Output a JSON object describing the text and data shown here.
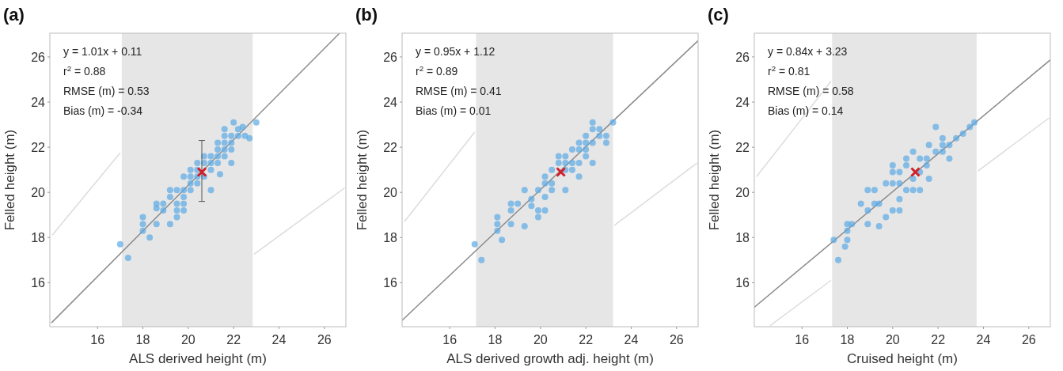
{
  "chart_data": [
    {
      "type": "scatter",
      "title": "(a)",
      "xlabel": "ALS derived height (m)",
      "ylabel": "Felled height (m)",
      "xlim": [
        13.9,
        26.95
      ],
      "ylim": [
        14.05,
        27.05
      ],
      "xticks": [
        16,
        18,
        20,
        22,
        24,
        26
      ],
      "yticks": [
        16,
        18,
        20,
        22,
        24,
        26
      ],
      "grid": false,
      "annotations": [
        "y = 1.01x + 0.11",
        "r$^{2}$ = 0.88",
        "RMSE (m) = 0.53",
        "Bias (m) = -0.34"
      ],
      "bands": [
        {
          "axis": "x",
          "from": 17.07,
          "to": 22.84,
          "color": "#e6e6e6"
        }
      ],
      "series": [
        {
          "type": "line",
          "color": "#dcdcdc",
          "x": [
            14.0,
            17.0
          ],
          "values": [
            18.1,
            21.75
          ]
        },
        {
          "type": "line",
          "color": "#dcdcdc",
          "x": [
            22.9,
            26.9
          ],
          "values": [
            17.26,
            20.2
          ]
        },
        {
          "type": "line",
          "color": "#8c8c8c",
          "x": [
            13.97,
            26.67
          ],
          "values": [
            14.22,
            27.05
          ]
        },
        {
          "marker": "circle",
          "color": "#5aaae6",
          "x": [
            17.0,
            17.35,
            18.0,
            18.0,
            18.0,
            18.3,
            18.6,
            18.6,
            18.6,
            18.9,
            18.9,
            19.2,
            19.2,
            19.2,
            19.5,
            19.5,
            19.5,
            19.5,
            19.8,
            19.8,
            19.8,
            19.8,
            19.8,
            20.1,
            20.1,
            20.1,
            20.1,
            20.4,
            20.4,
            20.4,
            20.4,
            20.7,
            20.7,
            20.7,
            21.0,
            21.0,
            21.0,
            21.0,
            21.3,
            21.3,
            21.3,
            21.3,
            21.4,
            21.6,
            21.6,
            21.6,
            21.6,
            21.6,
            21.9,
            21.9,
            21.9,
            21.9,
            22.0,
            22.2,
            22.2,
            22.4,
            22.5,
            22.7,
            23.0
          ],
          "values": [
            17.7,
            17.1,
            18.9,
            18.6,
            18.3,
            18.0,
            18.6,
            19.3,
            19.5,
            19.5,
            19.2,
            20.1,
            19.8,
            18.6,
            20.1,
            19.5,
            19.2,
            18.9,
            20.7,
            20.1,
            19.8,
            19.5,
            19.2,
            21.0,
            20.7,
            20.4,
            20.1,
            21.3,
            21.0,
            20.7,
            20.4,
            21.6,
            21.3,
            20.7,
            21.6,
            21.3,
            21.0,
            20.1,
            22.2,
            21.9,
            21.6,
            21.3,
            20.8,
            22.8,
            22.5,
            22.2,
            21.9,
            21.6,
            22.5,
            22.2,
            21.9,
            21.3,
            23.1,
            22.8,
            22.5,
            22.9,
            22.5,
            22.4,
            23.1
          ]
        },
        {
          "color": "#d0202a",
          "marker": "cross",
          "x": [
            20.6
          ],
          "values": [
            20.9
          ],
          "errors": [
            [
              19.6,
              22.3
            ]
          ]
        }
      ]
    },
    {
      "type": "scatter",
      "title": "(b)",
      "xlabel": "ALS derived growth adj. height (m)",
      "ylabel": "Felled height (m)",
      "xlim": [
        13.9,
        26.95
      ],
      "ylim": [
        14.05,
        27.05
      ],
      "xticks": [
        16,
        18,
        20,
        22,
        24,
        26
      ],
      "yticks": [
        16,
        18,
        20,
        22,
        24,
        26
      ],
      "grid": false,
      "annotations": [
        "y = 0.95x + 1.12",
        "r$^{2}$ = 0.89",
        "RMSE (m) = 0.41",
        "Bias (m) = 0.01"
      ],
      "bands": [
        {
          "axis": "x",
          "from": 17.16,
          "to": 23.2,
          "color": "#e6e6e6"
        }
      ],
      "series": [
        {
          "type": "line",
          "color": "#dcdcdc",
          "x": [
            14.0,
            17.1
          ],
          "values": [
            18.7,
            22.67
          ]
        },
        {
          "type": "line",
          "color": "#dcdcdc",
          "x": [
            23.26,
            26.9
          ],
          "values": [
            18.54,
            21.3
          ]
        },
        {
          "type": "line",
          "color": "#8c8c8c",
          "x": [
            13.9,
            26.95
          ],
          "values": [
            14.33,
            26.72
          ]
        },
        {
          "marker": "circle",
          "color": "#5aaae6",
          "x": [
            17.1,
            17.4,
            18.1,
            18.1,
            18.1,
            18.3,
            18.7,
            18.7,
            19.0,
            18.7,
            19.3,
            19.3,
            19.6,
            19.6,
            19.9,
            19.9,
            20.2,
            19.9,
            20.2,
            20.2,
            20.2,
            20.5,
            20.5,
            20.5,
            20.8,
            20.8,
            21.1,
            21.1,
            21.1,
            21.4,
            21.4,
            21.4,
            21.7,
            21.7,
            21.7,
            21.7,
            22.0,
            22.0,
            22.0,
            22.0,
            22.3,
            22.3,
            22.3,
            22.3,
            22.6,
            22.6,
            22.9,
            22.9,
            23.2,
            21.1
          ],
          "values": [
            17.7,
            17.0,
            18.9,
            18.6,
            18.3,
            17.9,
            18.6,
            19.5,
            19.5,
            19.2,
            20.1,
            18.5,
            19.7,
            19.4,
            19.2,
            18.9,
            19.2,
            20.1,
            20.4,
            20.7,
            19.8,
            21.0,
            20.4,
            20.1,
            21.3,
            21.6,
            21.6,
            21.3,
            21.0,
            21.9,
            21.3,
            21.0,
            22.2,
            21.9,
            21.3,
            20.7,
            22.5,
            22.2,
            21.9,
            21.6,
            22.2,
            22.8,
            23.1,
            21.3,
            22.8,
            22.5,
            22.5,
            22.2,
            23.1,
            20.1
          ]
        },
        {
          "color": "#d0202a",
          "marker": "cross",
          "x": [
            20.9
          ],
          "values": [
            20.9
          ]
        }
      ]
    },
    {
      "type": "scatter",
      "title": "(c)",
      "xlabel": "Cruised height (m)",
      "ylabel": "Felled height (m)",
      "xlim": [
        13.9,
        26.95
      ],
      "ylim": [
        14.05,
        27.05
      ],
      "xticks": [
        16,
        18,
        20,
        22,
        24,
        26
      ],
      "yticks": [
        16,
        18,
        20,
        22,
        24,
        26
      ],
      "grid": false,
      "annotations": [
        "y = 0.84x + 3.23",
        "r$^{2}$ = 0.81",
        "RMSE (m) = 0.58",
        "Bias (m) = 0.14"
      ],
      "bands": [
        {
          "axis": "x",
          "from": 17.33,
          "to": 23.7,
          "color": "#e6e6e6"
        }
      ],
      "series": [
        {
          "type": "line",
          "color": "#dcdcdc",
          "x": [
            14.0,
            17.28
          ],
          "values": [
            20.7,
            24.92
          ]
        },
        {
          "type": "line",
          "color": "#dcdcdc",
          "x": [
            14.6,
            17.28,
            20.5,
            23.76,
            26.9
          ],
          "values": [
            14.1,
            16.1,
            null,
            20.95,
            23.3
          ]
        },
        {
          "type": "line",
          "color": "#8c8c8c",
          "x": [
            13.9,
            26.95
          ],
          "values": [
            14.91,
            25.87
          ]
        },
        {
          "marker": "circle",
          "color": "#5aaae6",
          "x": [
            17.4,
            17.6,
            17.9,
            18.0,
            18.0,
            18.0,
            18.2,
            18.6,
            18.9,
            18.9,
            18.9,
            19.2,
            19.2,
            19.4,
            19.4,
            19.7,
            19.7,
            20.0,
            20.0,
            20.0,
            20.0,
            20.3,
            20.3,
            20.3,
            20.3,
            20.6,
            20.6,
            20.6,
            20.9,
            20.9,
            20.9,
            21.2,
            21.2,
            21.2,
            21.5,
            21.5,
            21.6,
            21.6,
            21.9,
            21.9,
            22.2,
            22.2,
            22.2,
            22.5,
            22.5,
            22.8,
            23.1,
            23.4,
            23.6
          ],
          "values": [
            17.9,
            17.0,
            17.6,
            17.9,
            18.3,
            18.6,
            18.6,
            19.5,
            18.6,
            19.2,
            20.1,
            20.1,
            19.5,
            19.5,
            18.5,
            18.9,
            20.4,
            19.2,
            20.4,
            20.9,
            21.2,
            19.2,
            19.7,
            20.4,
            20.9,
            20.1,
            21.2,
            21.5,
            20.1,
            20.6,
            21.8,
            20.9,
            20.1,
            21.5,
            21.2,
            21.5,
            20.6,
            22.1,
            21.8,
            22.9,
            22.1,
            21.8,
            22.4,
            21.5,
            22.1,
            22.4,
            22.6,
            22.9,
            23.1
          ]
        },
        {
          "color": "#d0202a",
          "marker": "cross",
          "x": [
            21.0
          ],
          "values": [
            20.9
          ]
        }
      ]
    }
  ]
}
